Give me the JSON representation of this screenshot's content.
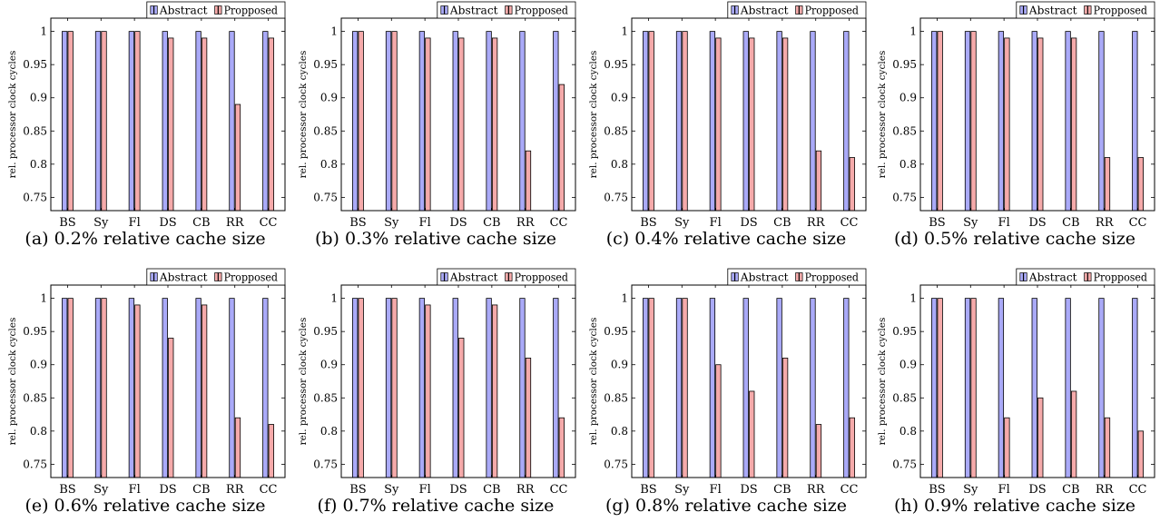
{
  "chart_data": [
    {
      "type": "bar",
      "caption": "(a) 0.2% relative cache size",
      "ylabel": "rel. processor clock cycles",
      "ylim": [
        0.73,
        1.02
      ],
      "yticks": [
        "0.75",
        "0.8",
        "0.85",
        "0.9",
        "0.95",
        "1"
      ],
      "categories": [
        "BS",
        "Sy",
        "Fl",
        "DS",
        "CB",
        "RR",
        "CC"
      ],
      "legend_position": "top-right",
      "series": [
        {
          "name": "Abstract",
          "color": "#aaaaf8",
          "values": [
            1,
            1,
            1,
            1,
            1,
            1,
            1
          ]
        },
        {
          "name": "Propposed",
          "color": "#f5aaaa",
          "values": [
            1,
            1,
            1,
            0.99,
            0.99,
            0.89,
            0.99
          ]
        }
      ]
    },
    {
      "type": "bar",
      "caption": "(b) 0.3% relative cache size",
      "ylabel": "rel. processor clock cycles",
      "ylim": [
        0.73,
        1.02
      ],
      "yticks": [
        "0.75",
        "0.8",
        "0.85",
        "0.9",
        "0.95",
        "1"
      ],
      "categories": [
        "BS",
        "Sy",
        "Fl",
        "DS",
        "CB",
        "RR",
        "CC"
      ],
      "legend_position": "top-right",
      "series": [
        {
          "name": "Abstract",
          "color": "#aaaaf8",
          "values": [
            1,
            1,
            1,
            1,
            1,
            1,
            1
          ]
        },
        {
          "name": "Propposed",
          "color": "#f5aaaa",
          "values": [
            1,
            1,
            0.99,
            0.99,
            0.99,
            0.82,
            0.92
          ]
        }
      ]
    },
    {
      "type": "bar",
      "caption": "(c) 0.4% relative cache size",
      "ylabel": "rel. processor clock cycles",
      "ylim": [
        0.73,
        1.02
      ],
      "yticks": [
        "0.75",
        "0.8",
        "0.85",
        "0.9",
        "0.95",
        "1"
      ],
      "categories": [
        "BS",
        "Sy",
        "Fl",
        "DS",
        "CB",
        "RR",
        "CC"
      ],
      "legend_position": "top-right",
      "series": [
        {
          "name": "Abstract",
          "color": "#aaaaf8",
          "values": [
            1,
            1,
            1,
            1,
            1,
            1,
            1
          ]
        },
        {
          "name": "Propposed",
          "color": "#f5aaaa",
          "values": [
            1,
            1,
            0.99,
            0.99,
            0.99,
            0.82,
            0.81
          ]
        }
      ]
    },
    {
      "type": "bar",
      "caption": "(d) 0.5% relative cache size",
      "ylabel": "rel. processor clock cycles",
      "ylim": [
        0.73,
        1.02
      ],
      "yticks": [
        "0.75",
        "0.8",
        "0.85",
        "0.9",
        "0.95",
        "1"
      ],
      "categories": [
        "BS",
        "Sy",
        "Fl",
        "DS",
        "CB",
        "RR",
        "CC"
      ],
      "legend_position": "top-right",
      "series": [
        {
          "name": "Abstract",
          "color": "#aaaaf8",
          "values": [
            1,
            1,
            1,
            1,
            1,
            1,
            1
          ]
        },
        {
          "name": "Propposed",
          "color": "#f5aaaa",
          "values": [
            1,
            1,
            0.99,
            0.99,
            0.99,
            0.81,
            0.81
          ]
        }
      ]
    },
    {
      "type": "bar",
      "caption": "(e) 0.6% relative cache size",
      "ylabel": "rel. processor clock cycles",
      "ylim": [
        0.73,
        1.02
      ],
      "yticks": [
        "0.75",
        "0.8",
        "0.85",
        "0.9",
        "0.95",
        "1"
      ],
      "categories": [
        "BS",
        "Sy",
        "Fl",
        "DS",
        "CB",
        "RR",
        "CC"
      ],
      "legend_position": "top-right",
      "series": [
        {
          "name": "Abstract",
          "color": "#aaaaf8",
          "values": [
            1,
            1,
            1,
            1,
            1,
            1,
            1
          ]
        },
        {
          "name": "Propposed",
          "color": "#f5aaaa",
          "values": [
            1,
            1,
            0.99,
            0.94,
            0.99,
            0.82,
            0.81
          ]
        }
      ]
    },
    {
      "type": "bar",
      "caption": "(f) 0.7% relative cache size",
      "ylabel": "rel. processor clock cycles",
      "ylim": [
        0.73,
        1.02
      ],
      "yticks": [
        "0.75",
        "0.8",
        "0.85",
        "0.9",
        "0.95",
        "1"
      ],
      "categories": [
        "BS",
        "Sy",
        "Fl",
        "DS",
        "CB",
        "RR",
        "CC"
      ],
      "legend_position": "top-right",
      "series": [
        {
          "name": "Abstract",
          "color": "#aaaaf8",
          "values": [
            1,
            1,
            1,
            1,
            1,
            1,
            1
          ]
        },
        {
          "name": "Propposed",
          "color": "#f5aaaa",
          "values": [
            1,
            1,
            0.99,
            0.94,
            0.99,
            0.91,
            0.82
          ]
        }
      ]
    },
    {
      "type": "bar",
      "caption": "(g) 0.8% relative cache size",
      "ylabel": "rel. processor clock cycles",
      "ylim": [
        0.73,
        1.02
      ],
      "yticks": [
        "0.75",
        "0.8",
        "0.85",
        "0.9",
        "0.95",
        "1"
      ],
      "categories": [
        "BS",
        "Sy",
        "Fl",
        "DS",
        "CB",
        "RR",
        "CC"
      ],
      "legend_position": "top-right",
      "series": [
        {
          "name": "Abstract",
          "color": "#aaaaf8",
          "values": [
            1,
            1,
            1,
            1,
            1,
            1,
            1
          ]
        },
        {
          "name": "Propposed",
          "color": "#f5aaaa",
          "values": [
            1,
            1,
            0.9,
            0.86,
            0.91,
            0.81,
            0.82
          ]
        }
      ]
    },
    {
      "type": "bar",
      "caption": "(h) 0.9% relative cache size",
      "ylabel": "rel. processor clock cycles",
      "ylim": [
        0.73,
        1.02
      ],
      "yticks": [
        "0.75",
        "0.8",
        "0.85",
        "0.9",
        "0.95",
        "1"
      ],
      "categories": [
        "BS",
        "Sy",
        "Fl",
        "DS",
        "CB",
        "RR",
        "CC"
      ],
      "legend_position": "top-right",
      "series": [
        {
          "name": "Abstract",
          "color": "#aaaaf8",
          "values": [
            1,
            1,
            1,
            1,
            1,
            1,
            1
          ]
        },
        {
          "name": "Propposed",
          "color": "#f5aaaa",
          "values": [
            1,
            1,
            0.82,
            0.85,
            0.86,
            0.82,
            0.8
          ]
        }
      ]
    }
  ]
}
